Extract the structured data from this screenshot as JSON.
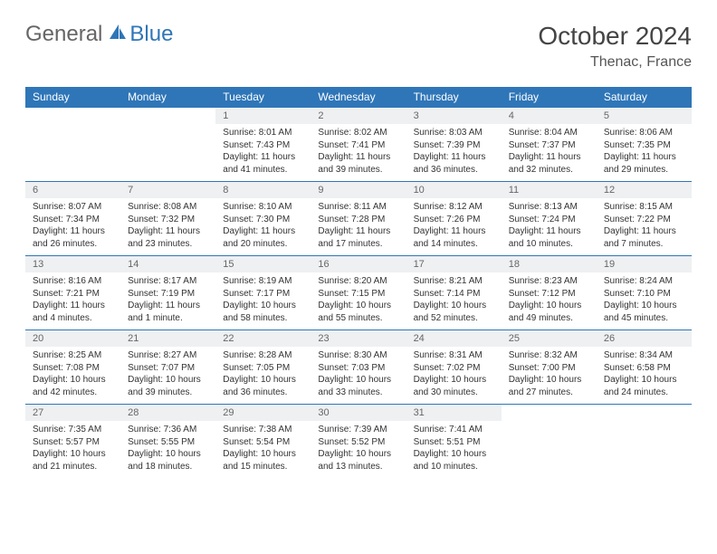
{
  "brand": {
    "part1": "General",
    "part2": "Blue"
  },
  "title": "October 2024",
  "location": "Thenac, France",
  "colors": {
    "header_bg": "#2f76b8",
    "header_text": "#ffffff",
    "daynum_bg": "#eef0f2",
    "border": "#2f76b8",
    "text": "#333333",
    "brand_gray": "#666666",
    "brand_blue": "#2f76b8"
  },
  "day_headers": [
    "Sunday",
    "Monday",
    "Tuesday",
    "Wednesday",
    "Thursday",
    "Friday",
    "Saturday"
  ],
  "weeks": [
    [
      null,
      null,
      {
        "n": "1",
        "sr": "Sunrise: 8:01 AM",
        "ss": "Sunset: 7:43 PM",
        "dl": "Daylight: 11 hours and 41 minutes."
      },
      {
        "n": "2",
        "sr": "Sunrise: 8:02 AM",
        "ss": "Sunset: 7:41 PM",
        "dl": "Daylight: 11 hours and 39 minutes."
      },
      {
        "n": "3",
        "sr": "Sunrise: 8:03 AM",
        "ss": "Sunset: 7:39 PM",
        "dl": "Daylight: 11 hours and 36 minutes."
      },
      {
        "n": "4",
        "sr": "Sunrise: 8:04 AM",
        "ss": "Sunset: 7:37 PM",
        "dl": "Daylight: 11 hours and 32 minutes."
      },
      {
        "n": "5",
        "sr": "Sunrise: 8:06 AM",
        "ss": "Sunset: 7:35 PM",
        "dl": "Daylight: 11 hours and 29 minutes."
      }
    ],
    [
      {
        "n": "6",
        "sr": "Sunrise: 8:07 AM",
        "ss": "Sunset: 7:34 PM",
        "dl": "Daylight: 11 hours and 26 minutes."
      },
      {
        "n": "7",
        "sr": "Sunrise: 8:08 AM",
        "ss": "Sunset: 7:32 PM",
        "dl": "Daylight: 11 hours and 23 minutes."
      },
      {
        "n": "8",
        "sr": "Sunrise: 8:10 AM",
        "ss": "Sunset: 7:30 PM",
        "dl": "Daylight: 11 hours and 20 minutes."
      },
      {
        "n": "9",
        "sr": "Sunrise: 8:11 AM",
        "ss": "Sunset: 7:28 PM",
        "dl": "Daylight: 11 hours and 17 minutes."
      },
      {
        "n": "10",
        "sr": "Sunrise: 8:12 AM",
        "ss": "Sunset: 7:26 PM",
        "dl": "Daylight: 11 hours and 14 minutes."
      },
      {
        "n": "11",
        "sr": "Sunrise: 8:13 AM",
        "ss": "Sunset: 7:24 PM",
        "dl": "Daylight: 11 hours and 10 minutes."
      },
      {
        "n": "12",
        "sr": "Sunrise: 8:15 AM",
        "ss": "Sunset: 7:22 PM",
        "dl": "Daylight: 11 hours and 7 minutes."
      }
    ],
    [
      {
        "n": "13",
        "sr": "Sunrise: 8:16 AM",
        "ss": "Sunset: 7:21 PM",
        "dl": "Daylight: 11 hours and 4 minutes."
      },
      {
        "n": "14",
        "sr": "Sunrise: 8:17 AM",
        "ss": "Sunset: 7:19 PM",
        "dl": "Daylight: 11 hours and 1 minute."
      },
      {
        "n": "15",
        "sr": "Sunrise: 8:19 AM",
        "ss": "Sunset: 7:17 PM",
        "dl": "Daylight: 10 hours and 58 minutes."
      },
      {
        "n": "16",
        "sr": "Sunrise: 8:20 AM",
        "ss": "Sunset: 7:15 PM",
        "dl": "Daylight: 10 hours and 55 minutes."
      },
      {
        "n": "17",
        "sr": "Sunrise: 8:21 AM",
        "ss": "Sunset: 7:14 PM",
        "dl": "Daylight: 10 hours and 52 minutes."
      },
      {
        "n": "18",
        "sr": "Sunrise: 8:23 AM",
        "ss": "Sunset: 7:12 PM",
        "dl": "Daylight: 10 hours and 49 minutes."
      },
      {
        "n": "19",
        "sr": "Sunrise: 8:24 AM",
        "ss": "Sunset: 7:10 PM",
        "dl": "Daylight: 10 hours and 45 minutes."
      }
    ],
    [
      {
        "n": "20",
        "sr": "Sunrise: 8:25 AM",
        "ss": "Sunset: 7:08 PM",
        "dl": "Daylight: 10 hours and 42 minutes."
      },
      {
        "n": "21",
        "sr": "Sunrise: 8:27 AM",
        "ss": "Sunset: 7:07 PM",
        "dl": "Daylight: 10 hours and 39 minutes."
      },
      {
        "n": "22",
        "sr": "Sunrise: 8:28 AM",
        "ss": "Sunset: 7:05 PM",
        "dl": "Daylight: 10 hours and 36 minutes."
      },
      {
        "n": "23",
        "sr": "Sunrise: 8:30 AM",
        "ss": "Sunset: 7:03 PM",
        "dl": "Daylight: 10 hours and 33 minutes."
      },
      {
        "n": "24",
        "sr": "Sunrise: 8:31 AM",
        "ss": "Sunset: 7:02 PM",
        "dl": "Daylight: 10 hours and 30 minutes."
      },
      {
        "n": "25",
        "sr": "Sunrise: 8:32 AM",
        "ss": "Sunset: 7:00 PM",
        "dl": "Daylight: 10 hours and 27 minutes."
      },
      {
        "n": "26",
        "sr": "Sunrise: 8:34 AM",
        "ss": "Sunset: 6:58 PM",
        "dl": "Daylight: 10 hours and 24 minutes."
      }
    ],
    [
      {
        "n": "27",
        "sr": "Sunrise: 7:35 AM",
        "ss": "Sunset: 5:57 PM",
        "dl": "Daylight: 10 hours and 21 minutes."
      },
      {
        "n": "28",
        "sr": "Sunrise: 7:36 AM",
        "ss": "Sunset: 5:55 PM",
        "dl": "Daylight: 10 hours and 18 minutes."
      },
      {
        "n": "29",
        "sr": "Sunrise: 7:38 AM",
        "ss": "Sunset: 5:54 PM",
        "dl": "Daylight: 10 hours and 15 minutes."
      },
      {
        "n": "30",
        "sr": "Sunrise: 7:39 AM",
        "ss": "Sunset: 5:52 PM",
        "dl": "Daylight: 10 hours and 13 minutes."
      },
      {
        "n": "31",
        "sr": "Sunrise: 7:41 AM",
        "ss": "Sunset: 5:51 PM",
        "dl": "Daylight: 10 hours and 10 minutes."
      },
      null,
      null
    ]
  ]
}
